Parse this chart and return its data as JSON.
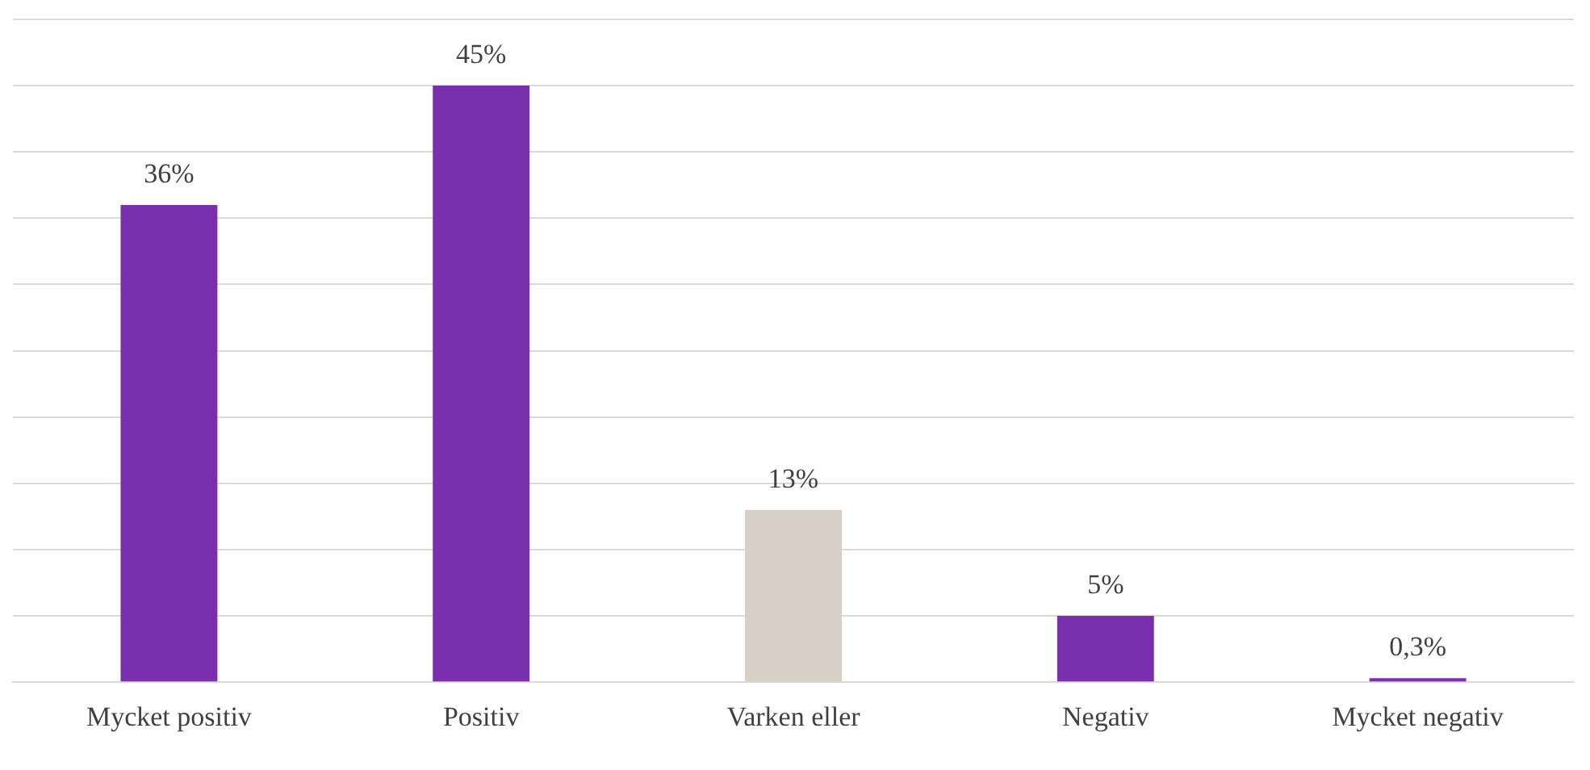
{
  "chart_data": {
    "type": "bar",
    "categories": [
      "Mycket positiv",
      "Positiv",
      "Varken eller",
      "Negativ",
      "Mycket negativ"
    ],
    "values": [
      36,
      45,
      13,
      5,
      0.3
    ],
    "colors": [
      "#7a2fad",
      "#7a2fad",
      "#d8cfc6",
      "#7a2fad",
      "#7a2fad"
    ],
    "value_labels": [
      "36%",
      "45%",
      "13%",
      "5%",
      "0,3%"
    ],
    "grid": "y",
    "tick_labels": "x",
    "legend": false
  }
}
